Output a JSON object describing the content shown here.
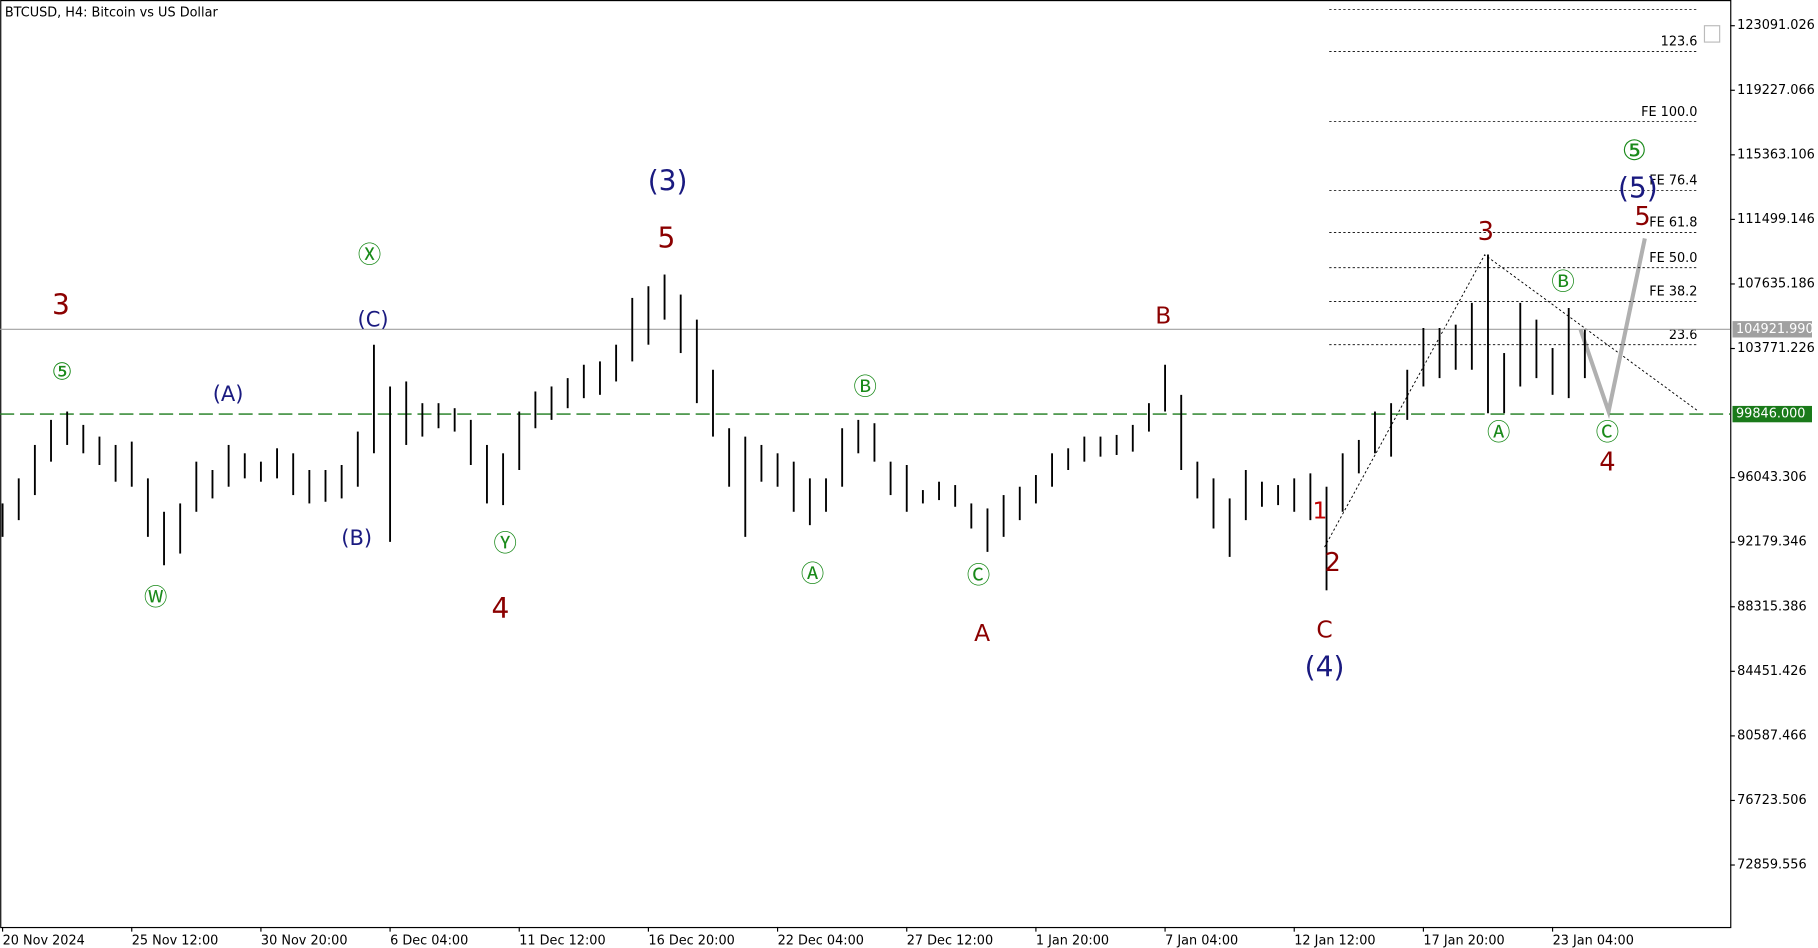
{
  "chart_data": {
    "type": "ohlc",
    "title": "BTCUSD, H4:  Bitcoin vs US Dollar",
    "color": "#000000",
    "x": [
      0,
      4,
      8,
      12,
      16,
      20,
      24,
      28,
      32,
      36,
      40,
      44,
      48,
      52,
      56,
      60,
      64,
      68,
      72,
      76,
      80,
      84,
      88,
      92,
      96,
      100,
      104,
      108,
      112,
      116,
      120,
      124,
      128,
      132,
      136,
      140,
      144,
      148,
      152,
      156,
      160,
      164,
      168,
      172,
      176,
      180,
      184,
      188,
      192,
      196,
      200,
      204,
      208,
      212,
      216,
      220,
      224,
      228,
      232,
      236,
      240,
      244,
      248,
      252,
      256,
      260,
      264,
      268,
      272,
      276,
      280,
      284,
      288,
      292,
      296,
      300,
      304,
      308,
      312,
      316,
      320,
      324,
      328,
      332,
      336,
      340,
      344,
      348,
      352,
      356,
      360,
      364,
      368,
      372,
      376,
      380,
      384,
      388,
      392
    ],
    "high": [
      94500,
      96000,
      98000,
      99500,
      100000,
      99200,
      98500,
      98000,
      98200,
      96000,
      94000,
      94500,
      97000,
      96500,
      98000,
      97500,
      97000,
      97800,
      97500,
      96500,
      96500,
      96800,
      98800,
      104000,
      101500,
      101800,
      100500,
      100500,
      100200,
      99500,
      98000,
      97500,
      100000,
      101200,
      101500,
      102000,
      102800,
      103000,
      104000,
      106800,
      107500,
      108200,
      107000,
      105500,
      102500,
      99000,
      98500,
      98000,
      97500,
      97000,
      96000,
      96000,
      99000,
      99500,
      99300,
      97000,
      96800,
      95300,
      95800,
      95600,
      94500,
      94200,
      95000,
      95500,
      96200,
      97500,
      97800,
      98500,
      98500,
      98600,
      99200,
      100500,
      102800,
      101000,
      97000,
      96000,
      94800,
      96500,
      95800,
      95600,
      96000,
      96300,
      95500,
      97500,
      98300,
      100000,
      100500,
      102500,
      105000,
      105000,
      105200,
      106500,
      109400,
      103500,
      106500,
      105500,
      103800,
      106200,
      104900
    ],
    "low": [
      92500,
      93500,
      95000,
      97000,
      98000,
      97500,
      96800,
      95800,
      95500,
      92500,
      90800,
      91500,
      94000,
      94800,
      95500,
      96000,
      95800,
      96000,
      95000,
      94500,
      94600,
      94800,
      95500,
      97500,
      92200,
      98000,
      98500,
      99000,
      98800,
      96800,
      94500,
      94400,
      96500,
      99000,
      99500,
      100200,
      100800,
      101000,
      101800,
      103000,
      104000,
      105500,
      103500,
      100500,
      98500,
      95500,
      92500,
      95800,
      95500,
      94000,
      93200,
      94000,
      95500,
      97500,
      97000,
      95000,
      94000,
      94500,
      94700,
      94300,
      93000,
      91600,
      92500,
      93500,
      94500,
      95500,
      96500,
      97000,
      97300,
      97400,
      97600,
      98800,
      100000,
      96500,
      94800,
      93000,
      91300,
      93500,
      94300,
      94400,
      94000,
      93500,
      89300,
      94000,
      96300,
      97500,
      97300,
      99500,
      101500,
      102000,
      102500,
      102500,
      99900,
      99900,
      101500,
      102000,
      101000,
      100800,
      102000
    ],
    "xlim": [
      -0.6,
      428
    ],
    "ylim": [
      69152,
      124630
    ],
    "xticks": [
      {
        "value": 0,
        "label": "20 Nov 2024"
      },
      {
        "value": 32,
        "label": "25 Nov 12:00"
      },
      {
        "value": 64,
        "label": "30 Nov 20:00"
      },
      {
        "value": 96,
        "label": "6 Dec 04:00"
      },
      {
        "value": 128,
        "label": "11 Dec 12:00"
      },
      {
        "value": 160,
        "label": "16 Dec 20:00"
      },
      {
        "value": 192,
        "label": "22 Dec 04:00"
      },
      {
        "value": 224,
        "label": "27 Dec 12:00"
      },
      {
        "value": 256,
        "label": "1 Jan 20:00"
      },
      {
        "value": 288,
        "label": "7 Jan 04:00"
      },
      {
        "value": 320,
        "label": "12 Jan 12:00"
      },
      {
        "value": 352,
        "label": "17 Jan 20:00"
      },
      {
        "value": 384,
        "label": "23 Jan 04:00"
      }
    ],
    "yticks": [
      123091.026,
      119227.066,
      115363.106,
      111499.146,
      107635.186,
      103771.226,
      96043.306,
      92179.346,
      88315.386,
      84451.426,
      80587.466,
      76723.506,
      72859.556
    ],
    "level_line": {
      "value": 99846,
      "label": "99846.000",
      "color": "#1a7a1a"
    },
    "price_line": {
      "value": 104921.99,
      "label": "104921.990",
      "color": "#a0a0a0"
    },
    "fib_levels": [
      {
        "value": 124070
      },
      {
        "value": 121550,
        "label": "123.6"
      },
      {
        "value": 117350,
        "label": "FE 100.0"
      },
      {
        "value": 113230,
        "label": "FE 76.4"
      },
      {
        "value": 110710,
        "label": "FE 61.8"
      },
      {
        "value": 108610,
        "label": "FE 50.0"
      },
      {
        "value": 106580,
        "label": "FE 38.2"
      },
      {
        "value": 104000,
        "label": "23.6"
      }
    ],
    "annotations": [
      {
        "text": "3",
        "color": "#8b0000"
      },
      {
        "text": "⑤",
        "color": "#1a8a1a"
      },
      {
        "text": "(A)",
        "color": "#1a1a80"
      },
      {
        "text": "Ⓦ",
        "color": "#1a8a1a"
      },
      {
        "text": "Ⓧ",
        "color": "#1a8a1a"
      },
      {
        "text": "(C)",
        "color": "#1a1a80"
      },
      {
        "text": "(B)",
        "color": "#1a1a80"
      },
      {
        "text": "Ⓨ",
        "color": "#1a8a1a"
      },
      {
        "text": "4",
        "color": "#8b0000"
      },
      {
        "text": "(3)",
        "color": "#1a1a80"
      },
      {
        "text": "5",
        "color": "#8b0000"
      },
      {
        "text": "Ⓑ",
        "color": "#1a8a1a"
      },
      {
        "text": "Ⓐ",
        "color": "#1a8a1a"
      },
      {
        "text": "Ⓒ",
        "color": "#1a8a1a"
      },
      {
        "text": "A",
        "color": "#8b0000"
      },
      {
        "text": "B",
        "color": "#8b0000"
      },
      {
        "text": "1",
        "color": "#c00000"
      },
      {
        "text": "2",
        "color": "#8b0000"
      },
      {
        "text": "C",
        "color": "#8b0000"
      },
      {
        "text": "(4)",
        "color": "#1a1a80"
      },
      {
        "text": "3",
        "color": "#8b0000"
      },
      {
        "text": "Ⓑ",
        "color": "#1a8a1a"
      },
      {
        "text": "Ⓐ",
        "color": "#1a8a1a"
      },
      {
        "text": "Ⓒ",
        "color": "#1a8a1a"
      },
      {
        "text": "4",
        "color": "#8b0000"
      },
      {
        "text": "⑤",
        "color": "#1a8a1a"
      },
      {
        "text": "(5)",
        "color": "#1a1a80"
      },
      {
        "text": "5",
        "color": "#8b0000"
      }
    ]
  }
}
